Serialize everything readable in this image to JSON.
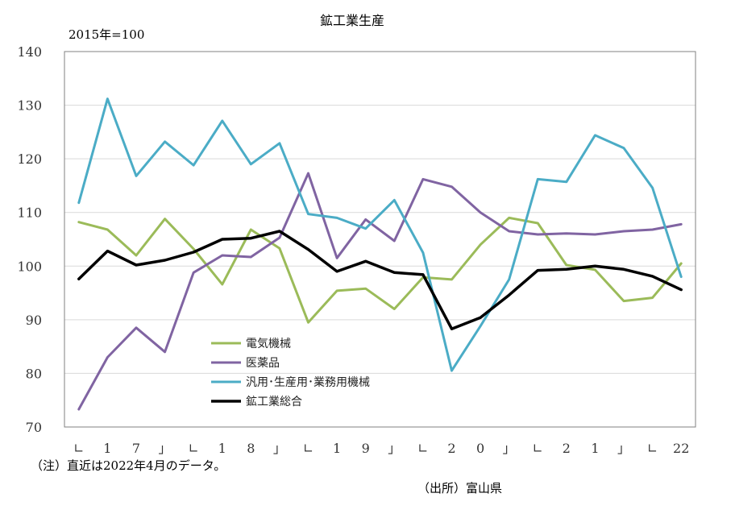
{
  "chart_data": {
    "type": "line",
    "title": "鉱工業生産",
    "unit_note": "2015年=100",
    "ylim": [
      70,
      140
    ],
    "yticks": [
      70,
      80,
      90,
      100,
      110,
      120,
      130,
      140
    ],
    "grid": true,
    "x_tick_labels": [
      "∟",
      "1",
      "7",
      "」",
      "∟",
      "1",
      "8",
      "」",
      "∟",
      "1",
      "9",
      "」",
      "∟",
      "2",
      "0",
      "」",
      "∟",
      "2",
      "1",
      "」",
      "∟",
      "22"
    ],
    "x": [
      "2017Q1",
      "2017Q2",
      "2017Q3",
      "2017Q4",
      "2018Q1",
      "2018Q2",
      "2018Q3",
      "2018Q4",
      "2019Q1",
      "2019Q2",
      "2019Q3",
      "2019Q4",
      "2020Q1",
      "2020Q2",
      "2020Q3",
      "2020Q4",
      "2021Q1",
      "2021Q2",
      "2021Q3",
      "2021Q4",
      "2022Q1",
      "2022Q2"
    ],
    "series": [
      {
        "name": "電気機械",
        "color": "#9bbb59",
        "values": [
          108.2,
          106.8,
          102.0,
          108.8,
          103.2,
          96.6,
          106.8,
          103.3,
          89.5,
          95.4,
          95.8,
          92.0,
          97.9,
          97.5,
          104.0,
          109.0,
          108.0,
          100.2,
          99.3,
          93.5,
          94.1,
          100.5
        ]
      },
      {
        "name": "医薬品",
        "color": "#8064a2",
        "values": [
          73.3,
          83.0,
          88.5,
          84.0,
          98.8,
          102.0,
          101.7,
          105.3,
          117.3,
          101.5,
          108.7,
          104.7,
          116.2,
          114.8,
          110.0,
          106.5,
          105.9,
          106.1,
          105.9,
          106.5,
          106.8,
          107.8
        ]
      },
      {
        "name": "汎用･生産用･業務用機械",
        "color": "#4bacc6",
        "values": [
          111.8,
          131.2,
          116.8,
          123.2,
          118.8,
          127.1,
          119.0,
          122.9,
          109.7,
          109.0,
          107.0,
          112.3,
          102.5,
          80.5,
          88.8,
          97.5,
          116.2,
          115.7,
          124.4,
          122.0,
          114.6,
          98.0
        ]
      },
      {
        "name": "鉱工業総合",
        "color": "#000000",
        "values": [
          97.6,
          102.8,
          100.2,
          101.1,
          102.6,
          105.0,
          105.2,
          106.5,
          103.1,
          99.0,
          100.9,
          98.8,
          98.4,
          88.3,
          90.4,
          94.6,
          99.2,
          99.4,
          100.0,
          99.4,
          98.1,
          95.6
        ]
      }
    ]
  },
  "footnote": "（注）直近は2022年4月のデータ。",
  "source": "（出所）富山県"
}
